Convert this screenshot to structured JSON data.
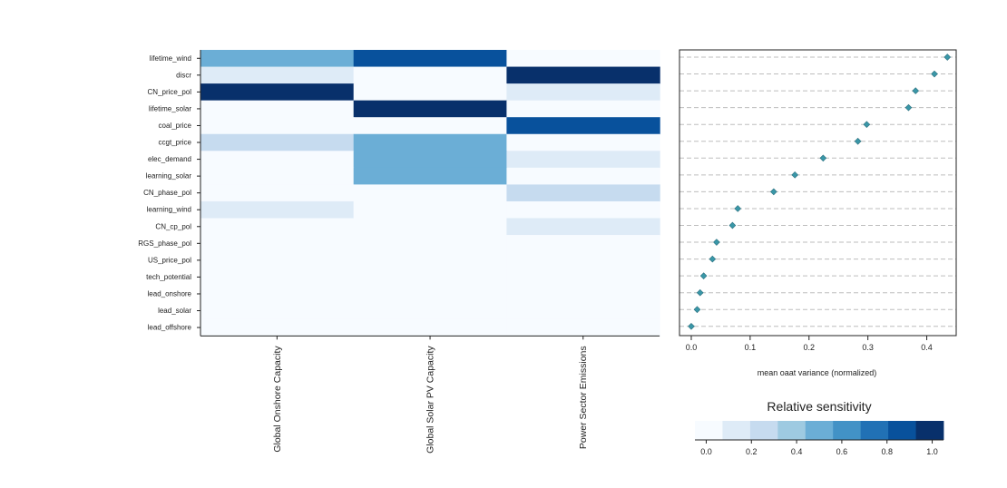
{
  "chart_data": [
    {
      "type": "heatmap",
      "rows": [
        "lifetime_wind",
        "discr",
        "CN_price_pol",
        "lifetime_solar",
        "coal_price",
        "ccgt_price",
        "elec_demand",
        "learning_solar",
        "CN_phase_pol",
        "learning_wind",
        "CN_cp_pol",
        "RGS_phase_pol",
        "US_price_pol",
        "tech_potential",
        "lead_onshore",
        "lead_solar",
        "lead_offshore"
      ],
      "columns": [
        "Global Onshore Capacity",
        "Global Solar PV Capacity",
        "Power Sector Emissions"
      ],
      "values": [
        [
          0.5,
          0.9,
          0.0
        ],
        [
          0.1,
          0.0,
          1.0
        ],
        [
          1.0,
          0.0,
          0.1
        ],
        [
          0.0,
          1.0,
          0.0
        ],
        [
          0.0,
          0.0,
          0.9
        ],
        [
          0.2,
          0.5,
          0.0
        ],
        [
          0.0,
          0.5,
          0.1
        ],
        [
          0.0,
          0.5,
          0.0
        ],
        [
          0.0,
          0.0,
          0.3
        ],
        [
          0.1,
          0.0,
          0.0
        ],
        [
          0.0,
          0.0,
          0.1
        ],
        [
          0.0,
          0.0,
          0.0
        ],
        [
          0.0,
          0.0,
          0.0
        ],
        [
          0.0,
          0.0,
          0.0
        ],
        [
          0.0,
          0.0,
          0.0
        ],
        [
          0.0,
          0.0,
          0.0
        ],
        [
          0.0,
          0.0,
          0.0
        ]
      ]
    },
    {
      "type": "scatter",
      "categories": [
        "lifetime_wind",
        "discr",
        "CN_price_pol",
        "lifetime_solar",
        "coal_price",
        "ccgt_price",
        "elec_demand",
        "learning_solar",
        "CN_phase_pol",
        "learning_wind",
        "CN_cp_pol",
        "RGS_phase_pol",
        "US_price_pol",
        "tech_potential",
        "lead_onshore",
        "lead_solar",
        "lead_offshore"
      ],
      "values": [
        0.435,
        0.413,
        0.381,
        0.369,
        0.298,
        0.283,
        0.224,
        0.176,
        0.14,
        0.079,
        0.07,
        0.043,
        0.036,
        0.021,
        0.015,
        0.01,
        0.0
      ],
      "xlabel": "mean oaat variance (normalized)",
      "xticks": [
        "0.0",
        "0.1",
        "0.2",
        "0.3",
        "0.4"
      ],
      "xlim": [
        -0.02,
        0.45
      ],
      "grid": "horizontal dashed",
      "marker_color": "#3a97a8"
    },
    {
      "type": "colorbar",
      "title": "Relative sensitivity",
      "ticks": [
        "0.0",
        "0.2",
        "0.4",
        "0.6",
        "0.8",
        "1.0"
      ],
      "range": [
        -0.05,
        1.05
      ],
      "colors": [
        "#f7fbff",
        "#deebf7",
        "#c6dbef",
        "#9ecae1",
        "#6baed6",
        "#4292c6",
        "#2171b5",
        "#08519c",
        "#08306b"
      ]
    }
  ]
}
